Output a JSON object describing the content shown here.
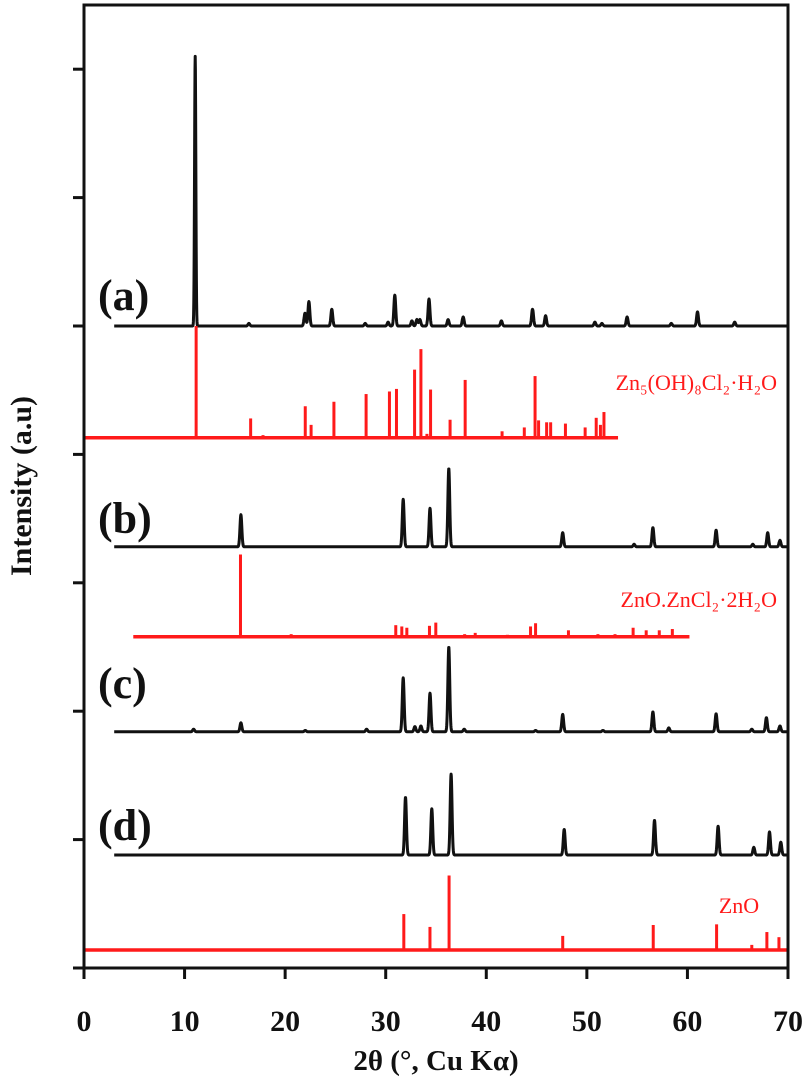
{
  "chart_data": {
    "type": "line",
    "title": "",
    "xlabel": "2θ (°, Cu Kα)",
    "ylabel": "Intensity (a.u)",
    "xlim": [
      0,
      70
    ],
    "ylim": [
      0,
      7.5
    ],
    "x_ticks": [
      "0",
      "10",
      "20",
      "30",
      "40",
      "50",
      "60",
      "70"
    ],
    "y_ticks_unlabeled": [
      0,
      1,
      2,
      3,
      4,
      5,
      6,
      7
    ],
    "y_tick_labels_shown": false,
    "grid": false,
    "legend": "none",
    "colors": {
      "sample": "#111111",
      "reference": "#ff1a1a"
    },
    "series": [
      {
        "name": "(a)",
        "kind": "pattern",
        "color": "#111111",
        "offset": 5.0,
        "range": [
          3,
          70
        ],
        "peaks": [
          [
            11.06,
            2.1
          ],
          [
            16.4,
            0.02
          ],
          [
            21.97,
            0.1
          ],
          [
            22.36,
            0.19
          ],
          [
            24.64,
            0.13
          ],
          [
            27.96,
            0.02
          ],
          [
            30.24,
            0.03
          ],
          [
            30.9,
            0.24
          ],
          [
            32.6,
            0.04
          ],
          [
            33.1,
            0.05
          ],
          [
            33.4,
            0.05
          ],
          [
            34.3,
            0.21
          ],
          [
            36.2,
            0.05
          ],
          [
            37.7,
            0.07
          ],
          [
            41.5,
            0.04
          ],
          [
            44.6,
            0.13
          ],
          [
            45.9,
            0.08
          ],
          [
            50.8,
            0.03
          ],
          [
            51.5,
            0.02
          ],
          [
            54.0,
            0.07
          ],
          [
            58.4,
            0.02
          ],
          [
            61.0,
            0.11
          ],
          [
            64.7,
            0.03
          ]
        ]
      },
      {
        "name": "Zn₅(OH)₈Cl₂·H₂O",
        "kind": "reference",
        "color": "#ff1a1a",
        "offset": 4.13,
        "range": [
          0,
          53.1
        ],
        "peaks": [
          [
            11.15,
            0.87
          ],
          [
            16.57,
            0.15
          ],
          [
            17.8,
            0.02
          ],
          [
            22.0,
            0.245
          ],
          [
            22.58,
            0.1
          ],
          [
            24.85,
            0.28
          ],
          [
            28.05,
            0.34
          ],
          [
            30.37,
            0.36
          ],
          [
            31.07,
            0.38
          ],
          [
            32.87,
            0.53
          ],
          [
            33.5,
            0.69
          ],
          [
            34.1,
            0.03
          ],
          [
            34.46,
            0.375
          ],
          [
            35.9,
            0.01
          ],
          [
            36.4,
            0.14
          ],
          [
            37.9,
            0.45
          ],
          [
            41.57,
            0.05
          ],
          [
            42.4,
            0.01
          ],
          [
            43.78,
            0.08
          ],
          [
            44.85,
            0.48
          ],
          [
            45.2,
            0.135
          ],
          [
            46.0,
            0.12
          ],
          [
            46.4,
            0.12
          ],
          [
            47.87,
            0.11
          ],
          [
            49.83,
            0.08
          ],
          [
            50.93,
            0.155
          ],
          [
            51.35,
            0.1
          ],
          [
            51.7,
            0.2
          ]
        ]
      },
      {
        "name": "(b)",
        "kind": "pattern",
        "color": "#111111",
        "offset": 3.28,
        "range": [
          3,
          70
        ],
        "peaks": [
          [
            15.6,
            0.25
          ],
          [
            31.74,
            0.37
          ],
          [
            34.4,
            0.3
          ],
          [
            36.27,
            0.61
          ],
          [
            47.6,
            0.11
          ],
          [
            54.7,
            0.02
          ],
          [
            56.57,
            0.15
          ],
          [
            62.85,
            0.13
          ],
          [
            66.5,
            0.02
          ],
          [
            67.98,
            0.11
          ],
          [
            69.2,
            0.05
          ]
        ]
      },
      {
        "name": "ZnO.ZnCl₂·2H₂O",
        "kind": "reference",
        "color": "#ff1a1a",
        "offset": 2.58,
        "range": [
          4.9,
          60.2
        ],
        "peaks": [
          [
            15.56,
            0.64
          ],
          [
            20.6,
            0.02
          ],
          [
            25.7,
            0.01
          ],
          [
            31.0,
            0.09
          ],
          [
            31.6,
            0.08
          ],
          [
            32.1,
            0.07
          ],
          [
            34.35,
            0.085
          ],
          [
            34.98,
            0.11
          ],
          [
            37.85,
            0.02
          ],
          [
            38.9,
            0.03
          ],
          [
            42.1,
            0.015
          ],
          [
            44.4,
            0.08
          ],
          [
            44.9,
            0.105
          ],
          [
            48.17,
            0.05
          ],
          [
            51.1,
            0.02
          ],
          [
            52.8,
            0.02
          ],
          [
            54.6,
            0.07
          ],
          [
            55.9,
            0.05
          ],
          [
            57.2,
            0.05
          ],
          [
            58.5,
            0.06
          ]
        ]
      },
      {
        "name": "(c)",
        "kind": "pattern",
        "color": "#111111",
        "offset": 1.84,
        "range": [
          3,
          70
        ],
        "peaks": [
          [
            10.9,
            0.02
          ],
          [
            15.6,
            0.07
          ],
          [
            22.0,
            0.01
          ],
          [
            28.1,
            0.02
          ],
          [
            31.74,
            0.42
          ],
          [
            32.9,
            0.04
          ],
          [
            33.5,
            0.045
          ],
          [
            34.4,
            0.3
          ],
          [
            36.27,
            0.66
          ],
          [
            37.8,
            0.02
          ],
          [
            44.9,
            0.01
          ],
          [
            47.6,
            0.135
          ],
          [
            51.6,
            0.01
          ],
          [
            56.57,
            0.155
          ],
          [
            58.15,
            0.03
          ],
          [
            62.85,
            0.14
          ],
          [
            66.4,
            0.02
          ],
          [
            67.85,
            0.11
          ],
          [
            69.2,
            0.045
          ]
        ]
      },
      {
        "name": "(d)",
        "kind": "pattern",
        "color": "#111111",
        "offset": 0.88,
        "range": [
          3,
          70
        ],
        "peaks": [
          [
            31.97,
            0.45
          ],
          [
            34.58,
            0.36
          ],
          [
            36.5,
            0.63
          ],
          [
            47.75,
            0.2
          ],
          [
            56.73,
            0.27
          ],
          [
            63.05,
            0.225
          ],
          [
            66.6,
            0.06
          ],
          [
            68.16,
            0.18
          ],
          [
            69.28,
            0.1
          ]
        ]
      },
      {
        "name": "ZnO",
        "kind": "reference",
        "color": "#ff1a1a",
        "offset": 0.14,
        "range": [
          0,
          70
        ],
        "peaks": [
          [
            31.8,
            0.28
          ],
          [
            34.4,
            0.18
          ],
          [
            36.3,
            0.58
          ],
          [
            47.6,
            0.11
          ],
          [
            56.6,
            0.195
          ],
          [
            62.9,
            0.2
          ],
          [
            66.4,
            0.04
          ],
          [
            67.9,
            0.14
          ],
          [
            69.1,
            0.1
          ]
        ]
      }
    ]
  }
}
